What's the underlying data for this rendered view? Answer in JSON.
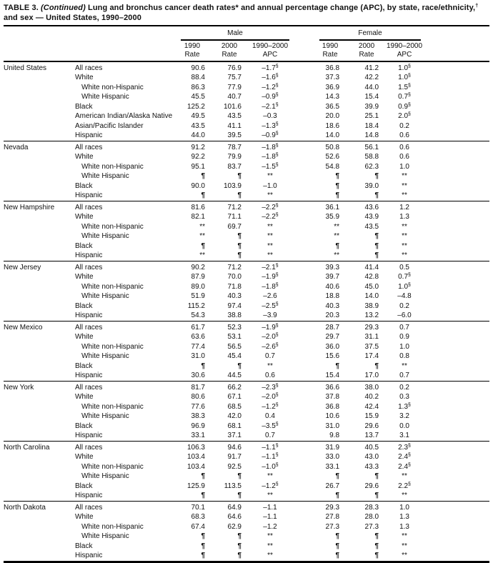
{
  "title": {
    "prefix": "TABLE 3. ",
    "continued": "(Continued)",
    "text": " Lung and bronchus cancer death rates* and annual percentage change (APC), by state, race/ethnicity,",
    "dagger": "†",
    "text2": " and sex — United States, 1990–2000"
  },
  "header": {
    "male": "Male",
    "female": "Female",
    "cols": [
      {
        "line1": "1990",
        "line2": "Rate"
      },
      {
        "line1": "2000",
        "line2": "Rate"
      },
      {
        "line1": "1990–2000",
        "line2": "APC"
      }
    ]
  },
  "footnote_symbols": {
    "significant_apc": "§",
    "suppressed_rate": "¶",
    "not_calculated": "**"
  },
  "groups": [
    {
      "state": "United States",
      "rows": [
        {
          "race": "All races",
          "indent": false,
          "m": [
            "90.6",
            "76.9",
            "–1.7§"
          ],
          "f": [
            "36.8",
            "41.2",
            "1.0§"
          ]
        },
        {
          "race": "White",
          "indent": false,
          "m": [
            "88.4",
            "75.7",
            "–1.6§"
          ],
          "f": [
            "37.3",
            "42.2",
            "1.0§"
          ]
        },
        {
          "race": "White non-Hispanic",
          "indent": true,
          "m": [
            "86.3",
            "77.9",
            "–1.2§"
          ],
          "f": [
            "36.9",
            "44.0",
            "1.5§"
          ]
        },
        {
          "race": "White Hispanic",
          "indent": true,
          "m": [
            "45.5",
            "40.7",
            "–0.9§"
          ],
          "f": [
            "14.3",
            "15.4",
            "0.7§"
          ]
        },
        {
          "race": "Black",
          "indent": false,
          "m": [
            "125.2",
            "101.6",
            "–2.1§"
          ],
          "f": [
            "36.5",
            "39.9",
            "0.9§"
          ]
        },
        {
          "race": "American Indian/Alaska Native",
          "indent": false,
          "m": [
            "49.5",
            "43.5",
            "–0.3"
          ],
          "f": [
            "20.0",
            "25.1",
            "2.0§"
          ]
        },
        {
          "race": "Asian/Pacific Islander",
          "indent": false,
          "m": [
            "43.5",
            "41.1",
            "–1.3§"
          ],
          "f": [
            "18.6",
            "18.4",
            "0.2"
          ]
        },
        {
          "race": "Hispanic",
          "indent": false,
          "m": [
            "44.0",
            "39.5",
            "–0.9§"
          ],
          "f": [
            "14.0",
            "14.8",
            "0.6"
          ]
        }
      ]
    },
    {
      "state": "Nevada",
      "rows": [
        {
          "race": "All races",
          "indent": false,
          "m": [
            "91.2",
            "78.7",
            "–1.8§"
          ],
          "f": [
            "50.8",
            "56.1",
            "0.6"
          ]
        },
        {
          "race": "White",
          "indent": false,
          "m": [
            "92.2",
            "79.9",
            "–1.8§"
          ],
          "f": [
            "52.6",
            "58.8",
            "0.6"
          ]
        },
        {
          "race": "White non-Hispanic",
          "indent": true,
          "m": [
            "95.1",
            "83.7",
            "–1.5§"
          ],
          "f": [
            "54.8",
            "62.3",
            "1.0"
          ]
        },
        {
          "race": "White Hispanic",
          "indent": true,
          "m": [
            "¶",
            "¶",
            "**"
          ],
          "f": [
            "¶",
            "¶",
            "**"
          ]
        },
        {
          "race": "Black",
          "indent": false,
          "m": [
            "90.0",
            "103.9",
            "–1.0"
          ],
          "f": [
            "¶",
            "39.0",
            "**"
          ]
        },
        {
          "race": "Hispanic",
          "indent": false,
          "m": [
            "¶",
            "¶",
            "**"
          ],
          "f": [
            "¶",
            "¶",
            "**"
          ]
        }
      ]
    },
    {
      "state": "New Hampshire",
      "rows": [
        {
          "race": "All races",
          "indent": false,
          "m": [
            "81.6",
            "71.2",
            "–2.2§"
          ],
          "f": [
            "36.1",
            "43.6",
            "1.2"
          ]
        },
        {
          "race": "White",
          "indent": false,
          "m": [
            "82.1",
            "71.1",
            "–2.2§"
          ],
          "f": [
            "35.9",
            "43.9",
            "1.3"
          ]
        },
        {
          "race": "White non-Hispanic",
          "indent": true,
          "m": [
            "**",
            "69.7",
            "**"
          ],
          "f": [
            "**",
            "43.5",
            "**"
          ]
        },
        {
          "race": "White Hispanic",
          "indent": true,
          "m": [
            "**",
            "¶",
            "**"
          ],
          "f": [
            "**",
            "¶",
            "**"
          ]
        },
        {
          "race": "Black",
          "indent": false,
          "m": [
            "¶",
            "¶",
            "**"
          ],
          "f": [
            "¶",
            "¶",
            "**"
          ]
        },
        {
          "race": "Hispanic",
          "indent": false,
          "m": [
            "**",
            "¶",
            "**"
          ],
          "f": [
            "**",
            "¶",
            "**"
          ]
        }
      ]
    },
    {
      "state": "New Jersey",
      "rows": [
        {
          "race": "All races",
          "indent": false,
          "m": [
            "90.2",
            "71.2",
            "–2.1§"
          ],
          "f": [
            "39.3",
            "41.4",
            "0.5"
          ]
        },
        {
          "race": "White",
          "indent": false,
          "m": [
            "87.9",
            "70.0",
            "–1.9§"
          ],
          "f": [
            "39.7",
            "42.8",
            "0.7§"
          ]
        },
        {
          "race": "White non-Hispanic",
          "indent": true,
          "m": [
            "89.0",
            "71.8",
            "–1.8§"
          ],
          "f": [
            "40.6",
            "45.0",
            "1.0§"
          ]
        },
        {
          "race": "White Hispanic",
          "indent": true,
          "m": [
            "51.9",
            "40.3",
            "–2.6"
          ],
          "f": [
            "18.8",
            "14.0",
            "–4.8"
          ]
        },
        {
          "race": "Black",
          "indent": false,
          "m": [
            "115.2",
            "97.4",
            "–2.5§"
          ],
          "f": [
            "40.3",
            "38.9",
            "0.2"
          ]
        },
        {
          "race": "Hispanic",
          "indent": false,
          "m": [
            "54.3",
            "38.8",
            "–3.9"
          ],
          "f": [
            "20.3",
            "13.2",
            "–6.0"
          ]
        }
      ]
    },
    {
      "state": "New Mexico",
      "rows": [
        {
          "race": "All races",
          "indent": false,
          "m": [
            "61.7",
            "52.3",
            "–1.9§"
          ],
          "f": [
            "28.7",
            "29.3",
            "0.7"
          ]
        },
        {
          "race": "White",
          "indent": false,
          "m": [
            "63.6",
            "53.1",
            "–2.0§"
          ],
          "f": [
            "29.7",
            "31.1",
            "0.9"
          ]
        },
        {
          "race": "White non-Hispanic",
          "indent": true,
          "m": [
            "77.4",
            "56.5",
            "–2.6§"
          ],
          "f": [
            "36.0",
            "37.5",
            "1.0"
          ]
        },
        {
          "race": "White Hispanic",
          "indent": true,
          "m": [
            "31.0",
            "45.4",
            "0.7"
          ],
          "f": [
            "15.6",
            "17.4",
            "0.8"
          ]
        },
        {
          "race": "Black",
          "indent": false,
          "m": [
            "¶",
            "¶",
            "**"
          ],
          "f": [
            "¶",
            "¶",
            "**"
          ]
        },
        {
          "race": "Hispanic",
          "indent": false,
          "m": [
            "30.6",
            "44.5",
            "0.6"
          ],
          "f": [
            "15.4",
            "17.0",
            "0.7"
          ]
        }
      ]
    },
    {
      "state": "New York",
      "rows": [
        {
          "race": "All races",
          "indent": false,
          "m": [
            "81.7",
            "66.2",
            "–2.3§"
          ],
          "f": [
            "36.6",
            "38.0",
            "0.2"
          ]
        },
        {
          "race": "White",
          "indent": false,
          "m": [
            "80.6",
            "67.1",
            "–2.0§"
          ],
          "f": [
            "37.8",
            "40.2",
            "0.3"
          ]
        },
        {
          "race": "White non-Hispanic",
          "indent": true,
          "m": [
            "77.6",
            "68.5",
            "–1.2§"
          ],
          "f": [
            "36.8",
            "42.4",
            "1.3§"
          ]
        },
        {
          "race": "White Hispanic",
          "indent": true,
          "m": [
            "38.3",
            "42.0",
            "0.4"
          ],
          "f": [
            "10.6",
            "15.9",
            "3.2"
          ]
        },
        {
          "race": "Black",
          "indent": false,
          "m": [
            "96.9",
            "68.1",
            "–3.5§"
          ],
          "f": [
            "31.0",
            "29.6",
            "0.0"
          ]
        },
        {
          "race": "Hispanic",
          "indent": false,
          "m": [
            "33.1",
            "37.1",
            "0.7"
          ],
          "f": [
            "9.8",
            "13.7",
            "3.1"
          ]
        }
      ]
    },
    {
      "state": "North Carolina",
      "rows": [
        {
          "race": "All races",
          "indent": false,
          "m": [
            "106.3",
            "94.6",
            "–1.1§"
          ],
          "f": [
            "31.9",
            "40.5",
            "2.3§"
          ]
        },
        {
          "race": "White",
          "indent": false,
          "m": [
            "103.4",
            "91.7",
            "–1.1§"
          ],
          "f": [
            "33.0",
            "43.0",
            "2.4§"
          ]
        },
        {
          "race": "White non-Hispanic",
          "indent": true,
          "m": [
            "103.4",
            "92.5",
            "–1.0§"
          ],
          "f": [
            "33.1",
            "43.3",
            "2.4§"
          ]
        },
        {
          "race": "White Hispanic",
          "indent": true,
          "m": [
            "¶",
            "¶",
            "**"
          ],
          "f": [
            "¶",
            "¶",
            "**"
          ]
        },
        {
          "race": "Black",
          "indent": false,
          "m": [
            "125.9",
            "113.5",
            "–1.2§"
          ],
          "f": [
            "26.7",
            "29.6",
            "2.2§"
          ]
        },
        {
          "race": "Hispanic",
          "indent": false,
          "m": [
            "¶",
            "¶",
            "**"
          ],
          "f": [
            "¶",
            "¶",
            "**"
          ]
        }
      ]
    },
    {
      "state": "North Dakota",
      "rows": [
        {
          "race": "All races",
          "indent": false,
          "m": [
            "70.1",
            "64.9",
            "–1.1"
          ],
          "f": [
            "29.3",
            "28.3",
            "1.0"
          ]
        },
        {
          "race": "White",
          "indent": false,
          "m": [
            "68.3",
            "64.6",
            "–1.1"
          ],
          "f": [
            "27.8",
            "28.0",
            "1.3"
          ]
        },
        {
          "race": "White non-Hispanic",
          "indent": true,
          "m": [
            "67.4",
            "62.9",
            "–1.2"
          ],
          "f": [
            "27.3",
            "27.3",
            "1.3"
          ]
        },
        {
          "race": "White Hispanic",
          "indent": true,
          "m": [
            "¶",
            "¶",
            "**"
          ],
          "f": [
            "¶",
            "¶",
            "**"
          ]
        },
        {
          "race": "Black",
          "indent": false,
          "m": [
            "¶",
            "¶",
            "**"
          ],
          "f": [
            "¶",
            "¶",
            "**"
          ]
        },
        {
          "race": "Hispanic",
          "indent": false,
          "m": [
            "¶",
            "¶",
            "**"
          ],
          "f": [
            "¶",
            "¶",
            "**"
          ]
        }
      ]
    }
  ]
}
